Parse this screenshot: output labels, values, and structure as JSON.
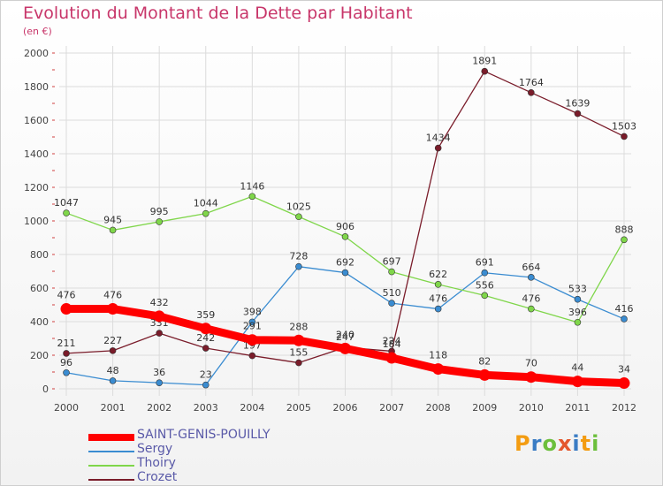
{
  "header": {
    "title": "Evolution du Montant de la Dette par Habitant",
    "subtitle": "(en €)"
  },
  "logo": {
    "text": "Proxiti",
    "colors": [
      "#f39c12",
      "#3a7cc4",
      "#6cbf3c",
      "#e4572e",
      "#3a7cc4",
      "#f39c12",
      "#6cbf3c"
    ]
  },
  "chart_data": {
    "type": "line",
    "title": "Evolution du Montant de la Dette par Habitant",
    "subtitle": "(en €)",
    "xlabel": "",
    "ylabel": "",
    "x": [
      "2000",
      "2001",
      "2002",
      "2003",
      "2004",
      "2005",
      "2006",
      "2007",
      "2008",
      "2009",
      "2010",
      "2011",
      "2012"
    ],
    "ylim": [
      0,
      2000
    ],
    "yticks": [
      "0",
      "200",
      "400",
      "600",
      "800",
      "1000",
      "1200",
      "1400",
      "1600",
      "1800",
      "2000"
    ],
    "grid": true,
    "legend_position": "bottom-left",
    "series": [
      {
        "name": "SAINT-GENIS-POUILLY",
        "color": "#ff0000",
        "values": [
          476,
          476,
          432,
          359,
          291,
          288,
          240,
          184,
          118,
          82,
          70,
          44,
          34
        ]
      },
      {
        "name": "Sergy",
        "color": "#3a8cd1",
        "values": [
          96,
          48,
          36,
          23,
          398,
          728,
          692,
          510,
          476,
          691,
          664,
          533,
          416
        ]
      },
      {
        "name": "Thoiry",
        "color": "#7fd64a",
        "values": [
          1047,
          945,
          995,
          1044,
          1146,
          1025,
          906,
          697,
          622,
          556,
          476,
          396,
          888
        ]
      },
      {
        "name": "Crozet",
        "color": "#7a1c2a",
        "values": [
          211,
          227,
          331,
          242,
          197,
          155,
          247,
          224,
          1434,
          1891,
          1764,
          1639,
          1503
        ]
      }
    ]
  }
}
